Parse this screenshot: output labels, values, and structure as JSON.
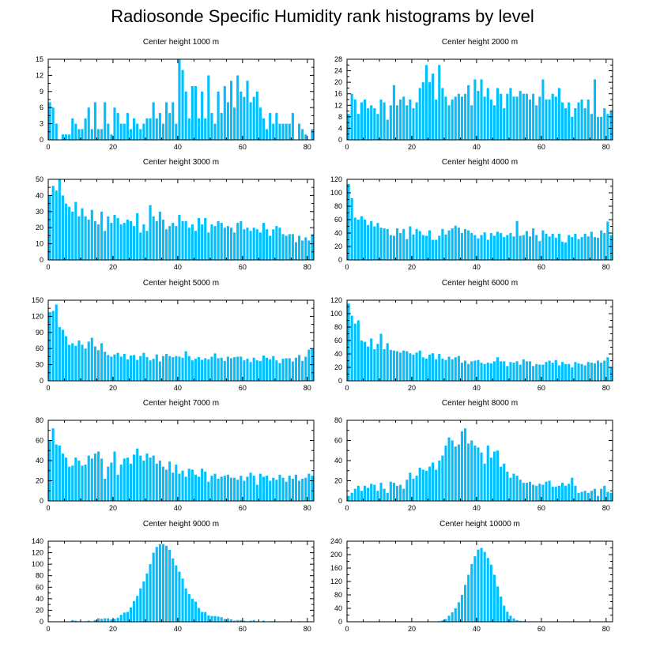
{
  "title": "Radiosonde Specific Humidity rank histograms by level",
  "bar_color": "#00bfff",
  "chart_data": [
    {
      "type": "bar",
      "title": "Center height 1000 m",
      "xlim": [
        0,
        82
      ],
      "xticks": [
        0,
        20,
        40,
        60,
        80
      ],
      "ylim": [
        0,
        15
      ],
      "yticks": [
        0,
        3,
        6,
        9,
        12,
        15
      ],
      "values": [
        7,
        6,
        3,
        0,
        1,
        1,
        1,
        4,
        3,
        2,
        2,
        4,
        6,
        2,
        7,
        2,
        2,
        7,
        3,
        1,
        6,
        5,
        3,
        3,
        5,
        2,
        4,
        3,
        2,
        3,
        4,
        4,
        7,
        4,
        5,
        3,
        7,
        5,
        7,
        3,
        15,
        13,
        9,
        4,
        10,
        10,
        4,
        9,
        4,
        12,
        5,
        3,
        9,
        5,
        10,
        7,
        11,
        6,
        12,
        9,
        8,
        11,
        7,
        8,
        9,
        6,
        4,
        2,
        5,
        3,
        5,
        3,
        3,
        3,
        3,
        5,
        0,
        3,
        2,
        1,
        0,
        2
      ]
    },
    {
      "type": "bar",
      "title": "Center height 2000 m",
      "xlim": [
        0,
        82
      ],
      "xticks": [
        0,
        20,
        40,
        60,
        80
      ],
      "ylim": [
        0,
        28
      ],
      "yticks": [
        0,
        4,
        8,
        12,
        16,
        20,
        24,
        28
      ],
      "values": [
        9,
        16,
        14,
        9,
        13,
        14,
        11,
        12,
        11,
        9,
        14,
        13,
        7,
        12,
        19,
        12,
        14,
        15,
        12,
        14,
        11,
        13,
        18,
        20,
        26,
        20,
        23,
        14,
        26,
        18,
        15,
        12,
        14,
        15,
        16,
        15,
        16,
        19,
        12,
        21,
        17,
        21,
        15,
        18,
        14,
        12,
        18,
        16,
        11,
        16,
        18,
        15,
        15,
        17,
        16,
        16,
        14,
        16,
        12,
        15,
        21,
        14,
        14,
        16,
        15,
        18,
        13,
        11,
        13,
        8,
        11,
        13,
        14,
        11,
        14,
        9,
        21,
        8,
        8,
        11,
        9,
        10
      ]
    },
    {
      "type": "bar",
      "title": "Center height 3000 m",
      "xlim": [
        0,
        82
      ],
      "xticks": [
        0,
        20,
        40,
        60,
        80
      ],
      "ylim": [
        0,
        50
      ],
      "yticks": [
        0,
        10,
        20,
        30,
        40,
        50
      ],
      "values": [
        40,
        46,
        43,
        50,
        40,
        35,
        33,
        30,
        36,
        27,
        32,
        27,
        25,
        31,
        24,
        22,
        30,
        18,
        27,
        23,
        28,
        26,
        22,
        23,
        25,
        24,
        21,
        29,
        17,
        22,
        18,
        34,
        27,
        24,
        30,
        25,
        19,
        21,
        23,
        21,
        28,
        24,
        24,
        20,
        22,
        18,
        26,
        22,
        26,
        17,
        22,
        21,
        24,
        23,
        20,
        21,
        20,
        17,
        23,
        24,
        19,
        20,
        18,
        20,
        19,
        17,
        23,
        19,
        15,
        19,
        21,
        20,
        16,
        15,
        16,
        16,
        11,
        15,
        12,
        14,
        12,
        16
      ]
    },
    {
      "type": "bar",
      "title": "Center height 4000 m",
      "xlim": [
        0,
        82
      ],
      "xticks": [
        0,
        20,
        40,
        60,
        80
      ],
      "ylim": [
        0,
        120
      ],
      "yticks": [
        0,
        20,
        40,
        60,
        80,
        100,
        120
      ],
      "values": [
        113,
        92,
        63,
        60,
        65,
        60,
        52,
        58,
        50,
        55,
        48,
        47,
        46,
        37,
        36,
        47,
        40,
        46,
        31,
        50,
        38,
        46,
        43,
        37,
        36,
        44,
        30,
        30,
        36,
        46,
        38,
        44,
        47,
        51,
        48,
        40,
        46,
        44,
        40,
        37,
        32,
        37,
        41,
        30,
        40,
        36,
        42,
        40,
        34,
        37,
        40,
        35,
        58,
        36,
        37,
        43,
        35,
        47,
        37,
        28,
        44,
        39,
        35,
        39,
        33,
        39,
        27,
        26,
        37,
        34,
        39,
        31,
        34,
        39,
        35,
        42,
        34,
        33,
        44,
        40,
        57,
        37
      ]
    },
    {
      "type": "bar",
      "title": "Center height 5000 m",
      "xlim": [
        0,
        82
      ],
      "xticks": [
        0,
        20,
        40,
        60,
        80
      ],
      "ylim": [
        0,
        150
      ],
      "yticks": [
        0,
        30,
        60,
        90,
        120,
        150
      ],
      "values": [
        128,
        130,
        142,
        100,
        95,
        83,
        67,
        70,
        65,
        75,
        67,
        60,
        73,
        80,
        64,
        57,
        70,
        54,
        48,
        45,
        49,
        52,
        45,
        50,
        40,
        47,
        48,
        39,
        46,
        52,
        44,
        38,
        41,
        49,
        36,
        46,
        50,
        46,
        44,
        46,
        45,
        43,
        55,
        46,
        38,
        41,
        44,
        39,
        42,
        40,
        45,
        51,
        42,
        43,
        37,
        45,
        42,
        44,
        45,
        45,
        38,
        41,
        35,
        43,
        38,
        37,
        47,
        43,
        40,
        46,
        38,
        33,
        41,
        42,
        42,
        36,
        43,
        48,
        37,
        45,
        58,
        60
      ]
    },
    {
      "type": "bar",
      "title": "Center height 6000 m",
      "xlim": [
        0,
        82
      ],
      "xticks": [
        0,
        20,
        40,
        60,
        80
      ],
      "ylim": [
        0,
        120
      ],
      "yticks": [
        0,
        20,
        40,
        60,
        80,
        100,
        120
      ],
      "values": [
        115,
        97,
        85,
        90,
        60,
        58,
        51,
        63,
        47,
        55,
        70,
        47,
        56,
        46,
        45,
        44,
        42,
        45,
        44,
        41,
        39,
        42,
        45,
        35,
        33,
        39,
        41,
        32,
        40,
        33,
        31,
        36,
        32,
        35,
        37,
        27,
        30,
        25,
        29,
        30,
        31,
        27,
        25,
        27,
        26,
        29,
        35,
        29,
        29,
        22,
        28,
        27,
        29,
        24,
        32,
        29,
        29,
        22,
        25,
        24,
        24,
        28,
        30,
        27,
        31,
        23,
        28,
        25,
        25,
        20,
        28,
        26,
        25,
        23,
        28,
        27,
        26,
        30,
        27,
        30,
        35,
        20
      ]
    },
    {
      "type": "bar",
      "title": "Center height 7000 m",
      "xlim": [
        0,
        82
      ],
      "xticks": [
        0,
        20,
        40,
        60,
        80
      ],
      "ylim": [
        0,
        80
      ],
      "yticks": [
        0,
        20,
        40,
        60,
        80
      ],
      "values": [
        60,
        72,
        56,
        55,
        47,
        43,
        34,
        35,
        43,
        40,
        35,
        36,
        45,
        42,
        47,
        49,
        42,
        22,
        34,
        38,
        49,
        26,
        36,
        42,
        43,
        37,
        46,
        52,
        45,
        40,
        47,
        43,
        45,
        37,
        40,
        34,
        31,
        39,
        28,
        36,
        27,
        30,
        24,
        32,
        31,
        26,
        24,
        32,
        29,
        19,
        25,
        27,
        22,
        24,
        25,
        26,
        23,
        23,
        21,
        25,
        20,
        24,
        28,
        25,
        16,
        27,
        24,
        25,
        20,
        23,
        21,
        26,
        23,
        19,
        25,
        22,
        26,
        20,
        22,
        23,
        27,
        25
      ]
    },
    {
      "type": "bar",
      "title": "Center height 8000 m",
      "xlim": [
        0,
        82
      ],
      "xticks": [
        0,
        20,
        40,
        60,
        80
      ],
      "ylim": [
        0,
        80
      ],
      "yticks": [
        0,
        20,
        40,
        60,
        80
      ],
      "values": [
        5,
        8,
        12,
        15,
        10,
        15,
        13,
        17,
        16,
        10,
        18,
        12,
        8,
        19,
        18,
        15,
        16,
        12,
        21,
        28,
        22,
        25,
        33,
        31,
        30,
        34,
        38,
        31,
        40,
        45,
        55,
        63,
        60,
        54,
        56,
        69,
        72,
        57,
        60,
        55,
        53,
        48,
        37,
        55,
        43,
        49,
        50,
        34,
        37,
        29,
        23,
        27,
        25,
        21,
        18,
        18,
        19,
        16,
        15,
        17,
        16,
        19,
        20,
        14,
        14,
        15,
        18,
        15,
        17,
        23,
        15,
        8,
        9,
        10,
        8,
        10,
        12,
        5,
        12,
        15,
        9,
        8
      ]
    },
    {
      "type": "bar",
      "title": "Center height 9000 m",
      "xlim": [
        0,
        82
      ],
      "xticks": [
        0,
        20,
        40,
        60,
        80
      ],
      "ylim": [
        0,
        140
      ],
      "yticks": [
        0,
        20,
        40,
        60,
        80,
        100,
        120,
        140
      ],
      "values": [
        0,
        0,
        0,
        0,
        0,
        0,
        0,
        3,
        2,
        1,
        0,
        1,
        2,
        0,
        3,
        6,
        5,
        6,
        6,
        4,
        5,
        7,
        12,
        16,
        17,
        25,
        36,
        45,
        58,
        70,
        84,
        100,
        120,
        130,
        135,
        135,
        132,
        125,
        110,
        98,
        87,
        75,
        58,
        48,
        40,
        35,
        24,
        17,
        17,
        11,
        10,
        10,
        9,
        8,
        5,
        6,
        4,
        2,
        3,
        3,
        2,
        1,
        2,
        3,
        1,
        0,
        2,
        0,
        1,
        1,
        0,
        0,
        0,
        0,
        0,
        0,
        0,
        1,
        0,
        0,
        0,
        0
      ]
    },
    {
      "type": "bar",
      "title": "Center height 10000 m",
      "xlim": [
        0,
        82
      ],
      "xticks": [
        0,
        20,
        40,
        60,
        80
      ],
      "ylim": [
        0,
        240
      ],
      "yticks": [
        0,
        40,
        80,
        120,
        160,
        200,
        240
      ],
      "values": [
        0,
        0,
        0,
        0,
        0,
        0,
        0,
        0,
        0,
        0,
        0,
        0,
        0,
        0,
        0,
        0,
        0,
        0,
        0,
        0,
        0,
        0,
        0,
        0,
        0,
        0,
        1,
        0,
        2,
        4,
        8,
        18,
        28,
        40,
        58,
        80,
        110,
        140,
        172,
        195,
        215,
        220,
        208,
        190,
        170,
        140,
        105,
        75,
        48,
        30,
        18,
        10,
        5,
        3,
        2,
        1,
        1,
        0,
        0,
        0,
        0,
        0,
        0,
        0,
        0,
        0,
        0,
        0,
        0,
        0,
        0,
        0,
        0,
        0,
        0,
        0,
        0,
        0,
        0,
        0,
        0,
        0
      ]
    }
  ]
}
